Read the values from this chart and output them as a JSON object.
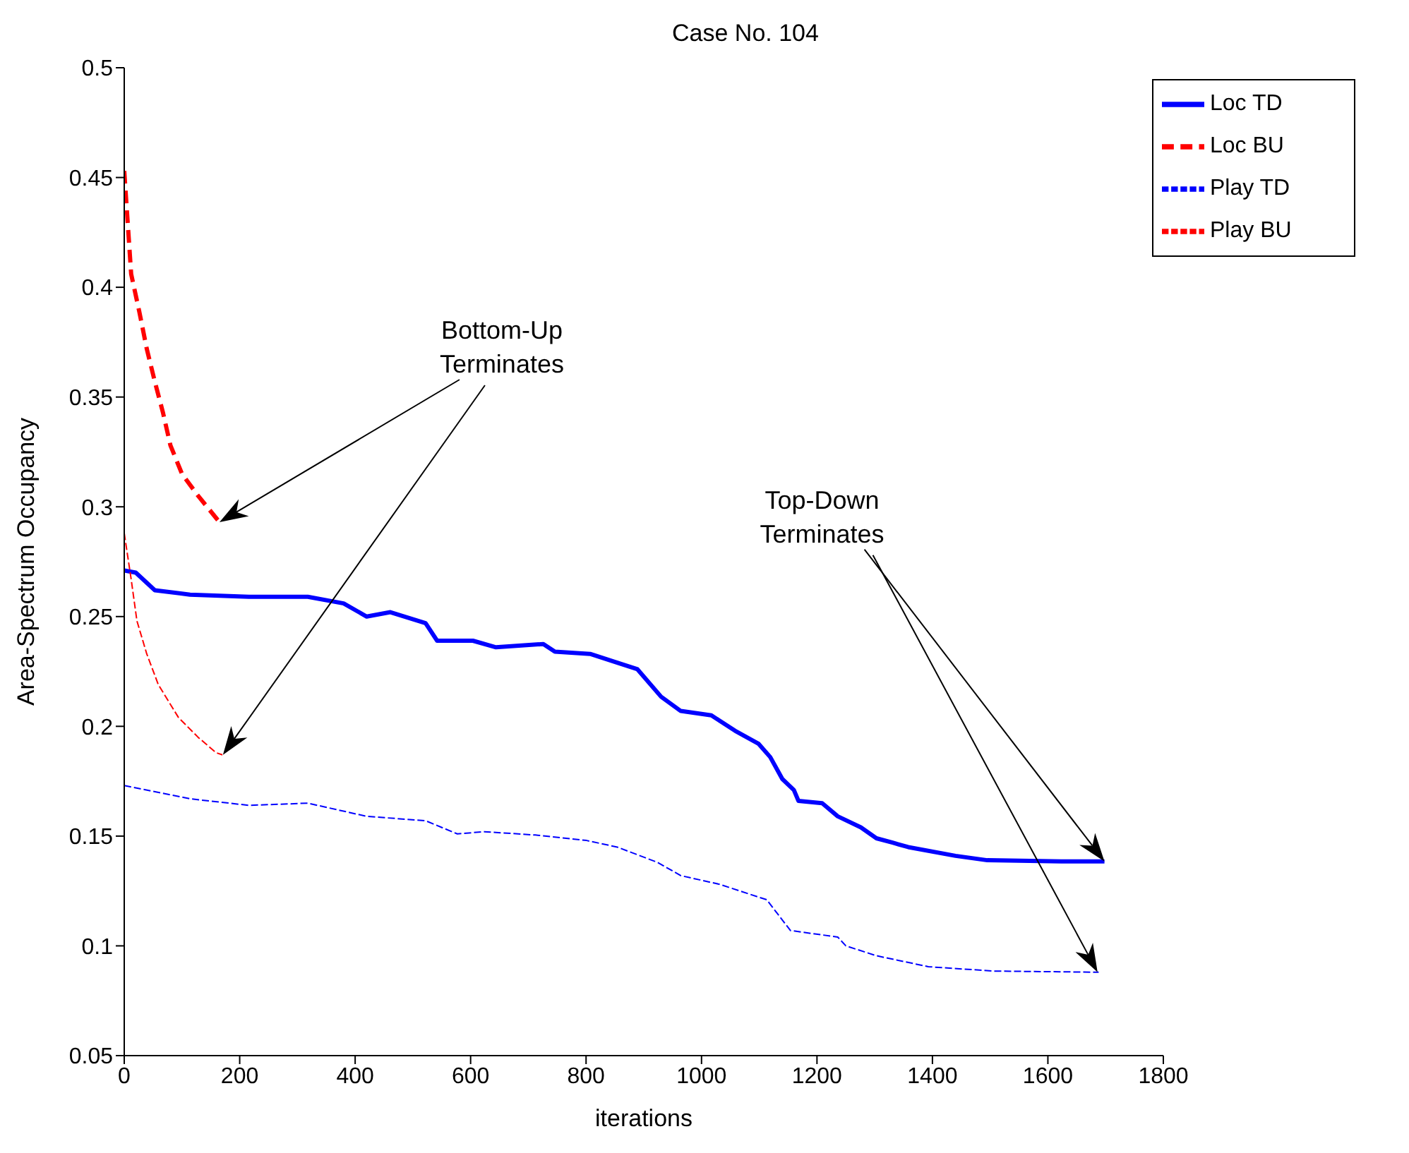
{
  "chart_data": {
    "type": "line",
    "title": "Case No. 104",
    "xlabel": "iterations",
    "ylabel": "Area-Spectrum Occupancy",
    "xlim": [
      0,
      1800
    ],
    "xticks": [
      0,
      200,
      400,
      600,
      800,
      1000,
      1200,
      1400,
      1600,
      1800
    ],
    "ylim": [
      0.05,
      0.5
    ],
    "yticks": [
      0.05,
      0.1,
      0.15,
      0.2,
      0.25,
      0.3,
      0.35,
      0.4,
      0.45,
      0.5
    ],
    "grid": false,
    "legend": "top right",
    "marker": "none",
    "series": [
      {
        "name": "Loc TD",
        "color": "#0000ff",
        "line_style": "solid",
        "x": [
          0,
          20,
          53,
          114,
          216,
          318,
          380,
          420,
          461,
          522,
          542,
          604,
          644,
          726,
          746,
          807,
          854,
          889,
          930,
          964,
          1017,
          1058,
          1099,
          1119,
          1140,
          1160,
          1168,
          1209,
          1236,
          1276,
          1303,
          1331,
          1358,
          1440,
          1495,
          1623,
          1698
        ],
        "values": [
          0.271,
          0.27,
          0.262,
          0.26,
          0.259,
          0.259,
          0.256,
          0.25,
          0.252,
          0.247,
          0.239,
          0.239,
          0.236,
          0.2375,
          0.234,
          0.233,
          0.229,
          0.226,
          0.2135,
          0.207,
          0.205,
          0.198,
          0.192,
          0.186,
          0.176,
          0.171,
          0.166,
          0.165,
          0.159,
          0.154,
          0.149,
          0.147,
          0.145,
          0.141,
          0.139,
          0.1385,
          0.1385
        ]
      },
      {
        "name": "Loc BU",
        "color": "#ff0000",
        "line_style": "dashed",
        "x": [
          0,
          12,
          26,
          39,
          53,
          67,
          80,
          100,
          128,
          165
        ],
        "values": [
          0.453,
          0.406,
          0.389,
          0.372,
          0.357,
          0.343,
          0.328,
          0.315,
          0.305,
          0.293
        ]
      },
      {
        "name": "Play TD",
        "color": "#0000ff",
        "line_style": "dashed",
        "x": [
          0,
          114,
          216,
          318,
          420,
          522,
          577,
          624,
          712,
          801,
          854,
          924,
          964,
          1032,
          1113,
          1154,
          1236,
          1250,
          1303,
          1393,
          1507,
          1688
        ],
        "values": [
          0.173,
          0.167,
          0.164,
          0.165,
          0.159,
          0.157,
          0.151,
          0.152,
          0.1505,
          0.148,
          0.145,
          0.138,
          0.132,
          0.128,
          0.121,
          0.107,
          0.104,
          0.1,
          0.0955,
          0.0905,
          0.0885,
          0.088
        ]
      },
      {
        "name": "Play BU",
        "color": "#ff0000",
        "line_style": "dashed",
        "x": [
          0,
          12,
          22,
          39,
          59,
          94,
          128,
          159,
          170
        ],
        "values": [
          0.288,
          0.267,
          0.248,
          0.233,
          0.219,
          0.204,
          0.195,
          0.188,
          0.187
        ]
      }
    ],
    "annotations": [
      "Bottom-Up\nTerminates",
      "Top-Down\nTerminates"
    ]
  }
}
